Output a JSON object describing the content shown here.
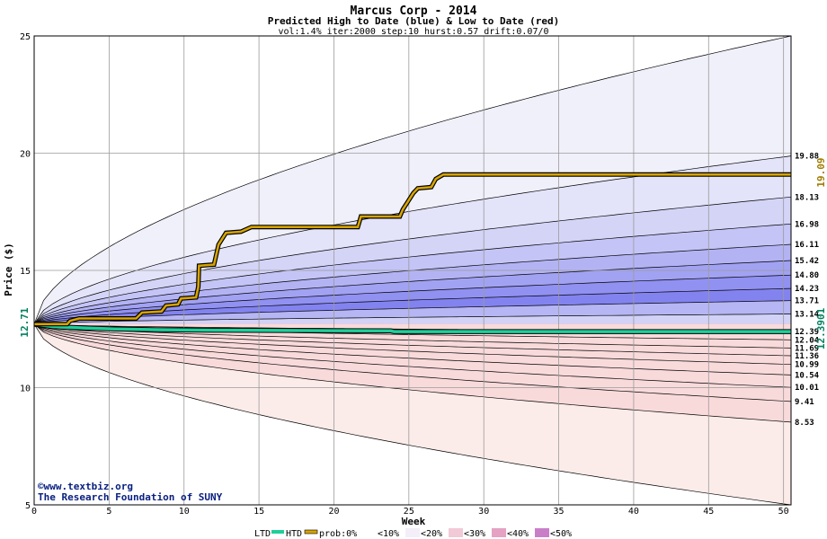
{
  "chart_data": {
    "type": "area",
    "title": "Marcus Corp - 2014",
    "subtitle": "Predicted High to Date (blue) &  Low to Date (red)",
    "params": "vol:1.4% iter:2000 step:10 hurst:0.57 drift:0.07/0",
    "xlabel": "Week",
    "ylabel": "Price ($)",
    "xlim": [
      0,
      50.5
    ],
    "ylim": [
      5,
      25
    ],
    "x_ticks": [
      "0",
      "5",
      "10",
      "15",
      "20",
      "25",
      "30",
      "35",
      "40",
      "45",
      "50"
    ],
    "y_ticks": [
      "5",
      "10",
      "15",
      "20",
      "25"
    ],
    "grid": true,
    "start_price_label": "12.71",
    "htd_end_label": "19.09",
    "ltd_end_label": "12.3901",
    "watermark": [
      "©www.textbiz.org",
      "The Research Foundation of SUNY"
    ],
    "legend": {
      "ltd": "LTD",
      "htd": "HTD",
      "prob_prefix": "prob:0%",
      "bins": [
        "<10%",
        "<20%",
        "<30%",
        "<40%",
        "<50%"
      ]
    },
    "high_band_end_values": [
      {
        "label": "19.88",
        "value": 19.88
      },
      {
        "label": "18.13",
        "value": 18.13
      },
      {
        "label": "16.98",
        "value": 16.98
      },
      {
        "label": "16.11",
        "value": 16.11
      },
      {
        "label": "15.42",
        "value": 15.42
      },
      {
        "label": "14.80",
        "value": 14.8
      },
      {
        "label": "14.23",
        "value": 14.23
      },
      {
        "label": "13.71",
        "value": 13.71
      },
      {
        "label": "13.14",
        "value": 13.14
      },
      {
        "label": "12.39",
        "value": 12.39
      }
    ],
    "low_band_end_values": [
      {
        "label": "12.04",
        "value": 12.04
      },
      {
        "label": "11.69",
        "value": 11.69
      },
      {
        "label": "11.36",
        "value": 11.36
      },
      {
        "label": "10.99",
        "value": 10.99
      },
      {
        "label": "10.54",
        "value": 10.54
      },
      {
        "label": "10.01",
        "value": 10.01
      },
      {
        "label": "9.41",
        "value": 9.41
      },
      {
        "label": "8.53",
        "value": 8.53
      }
    ],
    "outer_high_end_value": 25,
    "outer_low_end_value": 5,
    "htd_series": [
      [
        0,
        12.71
      ],
      [
        2.2,
        12.71
      ],
      [
        2.4,
        12.85
      ],
      [
        3,
        12.95
      ],
      [
        6.8,
        12.95
      ],
      [
        7.2,
        13.2
      ],
      [
        8.5,
        13.25
      ],
      [
        8.8,
        13.5
      ],
      [
        9.6,
        13.55
      ],
      [
        9.8,
        13.8
      ],
      [
        10.8,
        13.85
      ],
      [
        10.95,
        14.3
      ],
      [
        11,
        15.2
      ],
      [
        12,
        15.25
      ],
      [
        12.3,
        16.1
      ],
      [
        12.8,
        16.6
      ],
      [
        13.8,
        16.65
      ],
      [
        14.5,
        16.85
      ],
      [
        21.6,
        16.85
      ],
      [
        21.8,
        17.3
      ],
      [
        24.4,
        17.3
      ],
      [
        24.6,
        17.6
      ],
      [
        24.9,
        17.9
      ],
      [
        25.3,
        18.3
      ],
      [
        25.6,
        18.5
      ],
      [
        26.5,
        18.55
      ],
      [
        26.8,
        18.9
      ],
      [
        27.3,
        19.09
      ],
      [
        50.5,
        19.09
      ]
    ],
    "ltd_series": [
      [
        0,
        12.71
      ],
      [
        1.3,
        12.6
      ],
      [
        3,
        12.55
      ],
      [
        5.5,
        12.5
      ],
      [
        8,
        12.47
      ],
      [
        12,
        12.45
      ],
      [
        20,
        12.43
      ],
      [
        23.8,
        12.42
      ],
      [
        24,
        12.39
      ],
      [
        50.5,
        12.39
      ]
    ],
    "colors": {
      "background": "#ffffff",
      "low_outer": "#fcece9",
      "high_outer": "#f0f0fb",
      "grid": "#9a9a9a",
      "htd": "#d7a400",
      "ltd": "#1fcf9a",
      "ltd_label": "#008060",
      "htd_label": "#a07c00",
      "watermark": "#0a2080"
    }
  }
}
